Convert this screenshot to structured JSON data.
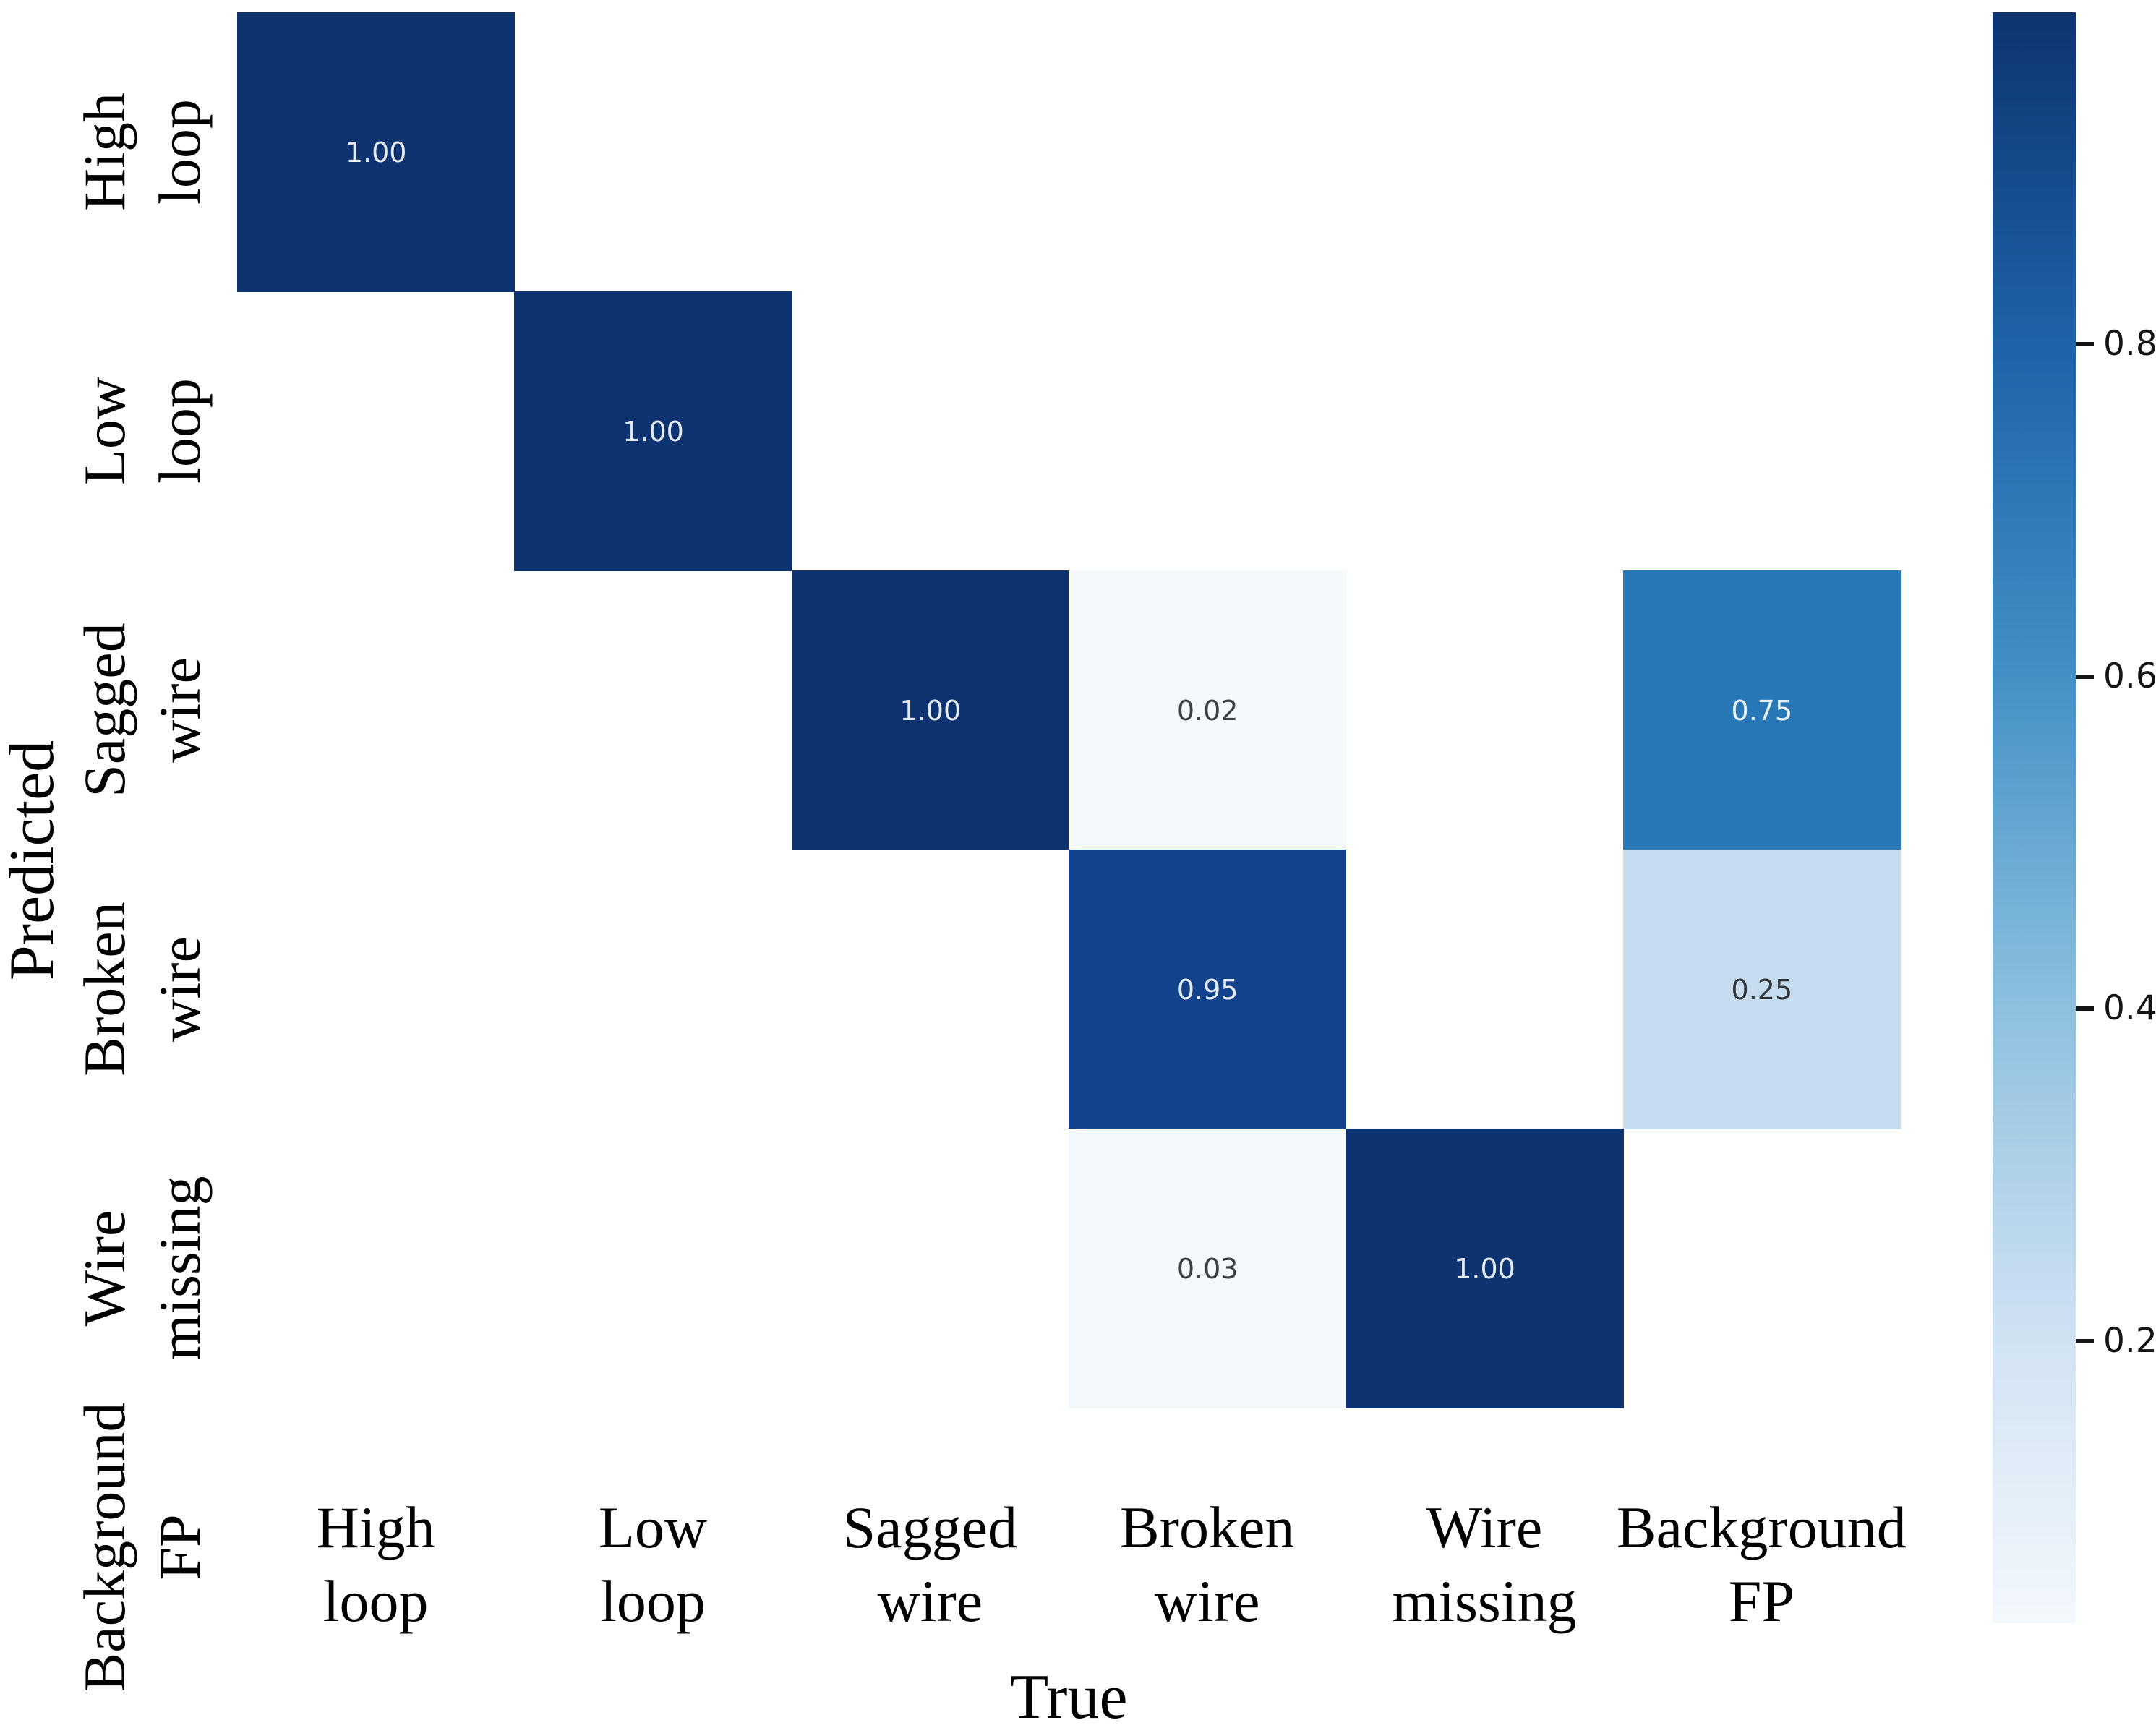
{
  "chart_data": {
    "type": "heatmap",
    "title": "",
    "xlabel": "True",
    "ylabel": "Predicted",
    "x_categories": [
      "High loop",
      "Low loop",
      "Sagged wire",
      "Broken wire",
      "Wire missing",
      "Background FP"
    ],
    "y_categories": [
      "High loop",
      "Low loop",
      "Sagged wire",
      "Broken wire",
      "Wire missing",
      "Background FP"
    ],
    "category_label_lines": [
      [
        "High",
        "loop"
      ],
      [
        "Low",
        "loop"
      ],
      [
        "Sagged",
        "wire"
      ],
      [
        "Broken",
        "wire"
      ],
      [
        "Wire",
        "missing"
      ],
      [
        "Background",
        "FP"
      ]
    ],
    "matrix_rows_predicted_cols_true": [
      [
        1.0,
        null,
        null,
        null,
        null,
        null
      ],
      [
        null,
        1.0,
        null,
        null,
        null,
        null
      ],
      [
        null,
        null,
        1.0,
        0.02,
        null,
        0.75
      ],
      [
        null,
        null,
        null,
        0.95,
        null,
        0.25
      ],
      [
        null,
        null,
        null,
        0.03,
        1.0,
        null
      ],
      [
        null,
        null,
        null,
        null,
        null,
        null
      ]
    ],
    "annotated_cells": [
      {
        "row": 0,
        "col": 0,
        "value": "1.00",
        "bg": "#0d3470",
        "fg": "#e6ecf5"
      },
      {
        "row": 1,
        "col": 1,
        "value": "1.00",
        "bg": "#0d3470",
        "fg": "#e6ecf5"
      },
      {
        "row": 2,
        "col": 2,
        "value": "1.00",
        "bg": "#0d3470",
        "fg": "#e6ecf5"
      },
      {
        "row": 2,
        "col": 3,
        "value": "0.02",
        "bg": "#f5f9fd",
        "fg": "#3c4046"
      },
      {
        "row": 2,
        "col": 5,
        "value": "0.75",
        "bg": "#2878b8",
        "fg": "#eaf1f9"
      },
      {
        "row": 3,
        "col": 3,
        "value": "0.95",
        "bg": "#13428c",
        "fg": "#e6ecf5"
      },
      {
        "row": 3,
        "col": 5,
        "value": "0.25",
        "bg": "#c5dbee",
        "fg": "#33373c"
      },
      {
        "row": 4,
        "col": 3,
        "value": "0.03",
        "bg": "#f3f8fd",
        "fg": "#3c4046"
      },
      {
        "row": 4,
        "col": 4,
        "value": "1.00",
        "bg": "#0d3470",
        "fg": "#e6ecf5"
      }
    ],
    "empty_cell_color": "#ffffff",
    "colormap": "Blues",
    "grid": false,
    "legend_position": "right-colorbar",
    "colorbar": {
      "vmin": 0.03,
      "vmax": 1.0,
      "tick_values": [
        0.8,
        0.6,
        0.4,
        0.2
      ],
      "tick_labels": [
        "0.8",
        "0.6",
        "0.4",
        "0.2"
      ],
      "gradient_stops": [
        {
          "pos": 0.0,
          "color": "#0d3470"
        },
        {
          "pos": 0.207,
          "color": "#1e63a8"
        },
        {
          "pos": 0.414,
          "color": "#4391c6"
        },
        {
          "pos": 0.622,
          "color": "#8fc1df"
        },
        {
          "pos": 0.829,
          "color": "#d2e3f3"
        },
        {
          "pos": 1.0,
          "color": "#f3f8fd"
        }
      ]
    }
  },
  "axes": {
    "x_title": "True",
    "y_title": "Predicted"
  }
}
